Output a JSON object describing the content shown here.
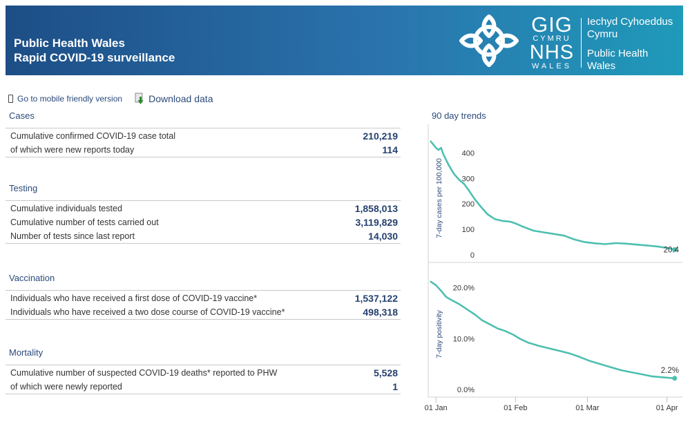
{
  "header": {
    "title_line1": "Public Health Wales",
    "title_line2": "Rapid COVID-19 surveillance",
    "logo": {
      "gig": "GIG",
      "cymru": "CYMRU",
      "nhs": "NHS",
      "wales": "WALES",
      "org_welsh_1": "Iechyd Cyhoeddus",
      "org_welsh_2": "Cymru",
      "org_english_1": "Public Health",
      "org_english_2": "Wales"
    }
  },
  "toolbar": {
    "mobile_link": "Go to mobile friendly version",
    "download_link": "Download data"
  },
  "sections": {
    "cases": {
      "title": "Cases",
      "rows": [
        {
          "label": "Cumulative confirmed COVID-19 case total",
          "value": "210,219"
        },
        {
          "label": "of which were new reports today",
          "value": "114"
        }
      ]
    },
    "testing": {
      "title": "Testing",
      "rows": [
        {
          "label": "Cumulative individuals tested",
          "value": "1,858,013"
        },
        {
          "label": "Cumulative number of tests carried out",
          "value": "3,119,829"
        },
        {
          "label": "Number of tests since last report",
          "value": "14,030"
        }
      ]
    },
    "vaccination": {
      "title": "Vaccination",
      "rows": [
        {
          "label": "Individuals who have received a first dose of COVID-19 vaccine*",
          "value": "1,537,122"
        },
        {
          "label": "Individuals who have received a two dose course of COVID-19 vaccine*",
          "value": "498,318"
        }
      ]
    },
    "mortality": {
      "title": "Mortality",
      "rows": [
        {
          "label": "Cumulative number of suspected COVID-19 deaths* reported to PHW",
          "value": "5,528"
        },
        {
          "label": "of which were newly reported",
          "value": "1"
        }
      ]
    }
  },
  "colors": {
    "header_start": "#1d4e86",
    "header_end": "#1f9ab9",
    "trend_line": "#4dbfb0",
    "value_text": "#243f6e",
    "section_title": "#2b4a7a"
  },
  "chart_data": [
    {
      "type": "line",
      "title": "90 day trends",
      "ylabel": "7-day cases per 100,000",
      "ylim": [
        0,
        450
      ],
      "yticks": [
        0,
        100,
        200,
        300,
        400
      ],
      "ytick_labels": [
        "0",
        "100",
        "200",
        "300",
        "400"
      ],
      "x": [
        "2020-12-30",
        "2021-01-01",
        "2021-01-02",
        "2021-01-03",
        "2021-01-04",
        "2021-01-06",
        "2021-01-08",
        "2021-01-10",
        "2021-01-12",
        "2021-01-14",
        "2021-01-16",
        "2021-01-18",
        "2021-01-21",
        "2021-01-24",
        "2021-01-27",
        "2021-01-30",
        "2021-02-01",
        "2021-02-04",
        "2021-02-08",
        "2021-02-12",
        "2021-02-16",
        "2021-02-20",
        "2021-02-24",
        "2021-02-28",
        "2021-03-04",
        "2021-03-08",
        "2021-03-12",
        "2021-03-16",
        "2021-03-20",
        "2021-03-24",
        "2021-03-28",
        "2021-04-01",
        "2021-04-04"
      ],
      "values": [
        445,
        420,
        412,
        420,
        392,
        352,
        318,
        295,
        278,
        250,
        220,
        195,
        160,
        140,
        133,
        130,
        123,
        110,
        95,
        88,
        82,
        75,
        60,
        50,
        45,
        42,
        46,
        44,
        40,
        37,
        33,
        27,
        20.4
      ],
      "end_label": "20.4"
    },
    {
      "type": "line",
      "ylabel": "7-day positivity",
      "ylim": [
        0,
        22
      ],
      "yticks": [
        0,
        10,
        20
      ],
      "ytick_labels": [
        "0.0%",
        "10.0%",
        "20.0%"
      ],
      "xtick_labels": [
        "01 Jan",
        "01 Feb",
        "01 Mar",
        "01 Apr"
      ],
      "x": [
        "2020-12-30",
        "2021-01-01",
        "2021-01-03",
        "2021-01-05",
        "2021-01-07",
        "2021-01-10",
        "2021-01-13",
        "2021-01-16",
        "2021-01-19",
        "2021-01-22",
        "2021-01-25",
        "2021-01-28",
        "2021-01-31",
        "2021-02-03",
        "2021-02-06",
        "2021-02-10",
        "2021-02-14",
        "2021-02-18",
        "2021-02-22",
        "2021-02-26",
        "2021-03-02",
        "2021-03-06",
        "2021-03-10",
        "2021-03-14",
        "2021-03-18",
        "2021-03-22",
        "2021-03-26",
        "2021-03-30",
        "2021-04-04"
      ],
      "values": [
        21.2,
        20.5,
        19.4,
        18.2,
        17.6,
        16.8,
        15.8,
        14.8,
        13.6,
        12.8,
        12.0,
        11.5,
        10.8,
        9.9,
        9.2,
        8.6,
        8.1,
        7.6,
        7.1,
        6.4,
        5.6,
        5.0,
        4.4,
        3.8,
        3.4,
        3.0,
        2.6,
        2.4,
        2.2
      ],
      "end_label": "2.2%"
    }
  ]
}
